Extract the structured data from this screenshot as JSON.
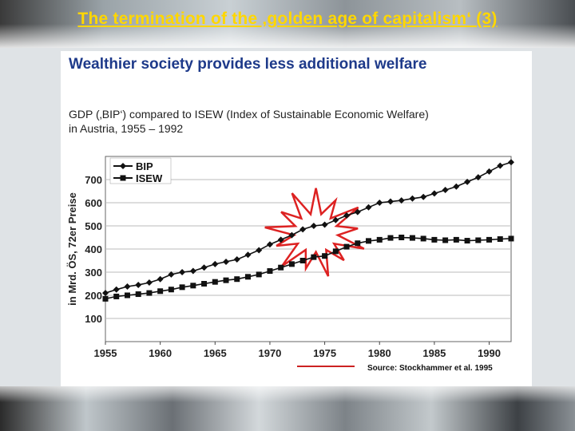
{
  "slide": {
    "title": "The termination of the ‚golden age of capitalism‘ (3)",
    "heading": "Wealthier society provides less additional welfare",
    "subtitle_line1": "GDP (‚BIP‘) compared to ISEW (Index of Sustainable Economic Welfare)",
    "subtitle_line2": "in Austria, 1955 – 1992",
    "source": "Source: Stockhammer et al. 1995",
    "accent_color": "#ffd700",
    "heading_color": "#1e3a8a",
    "source_underline_color": "#cc2222"
  },
  "chart_data": {
    "type": "line",
    "ylabel": "in Mrd. ÖS, 72er Preise",
    "xlabel": "",
    "xlim": [
      1955,
      1992
    ],
    "ylim": [
      0,
      800
    ],
    "x_ticks": [
      "1955",
      "1960",
      "1965",
      "1970",
      "1975",
      "1980",
      "1985",
      "1990"
    ],
    "y_ticks": [
      "100",
      "200",
      "300",
      "400",
      "500",
      "600",
      "700"
    ],
    "grid": true,
    "legend": {
      "position": "top-left",
      "entries": [
        "BIP",
        "ISEW"
      ]
    },
    "annotation": "starburst around 1973–1975",
    "x": [
      1955,
      1956,
      1957,
      1958,
      1959,
      1960,
      1961,
      1962,
      1963,
      1964,
      1965,
      1966,
      1967,
      1968,
      1969,
      1970,
      1971,
      1972,
      1973,
      1974,
      1975,
      1976,
      1977,
      1978,
      1979,
      1980,
      1981,
      1982,
      1983,
      1984,
      1985,
      1986,
      1987,
      1988,
      1989,
      1990,
      1991,
      1992
    ],
    "series": [
      {
        "name": "BIP",
        "marker": "diamond",
        "values": [
          210,
          225,
          238,
          245,
          255,
          270,
          290,
          300,
          305,
          320,
          335,
          345,
          355,
          375,
          395,
          420,
          440,
          460,
          485,
          500,
          505,
          525,
          545,
          560,
          580,
          600,
          605,
          610,
          618,
          625,
          640,
          655,
          670,
          690,
          710,
          735,
          760,
          775
        ]
      },
      {
        "name": "ISEW",
        "marker": "square",
        "values": [
          185,
          195,
          200,
          205,
          210,
          218,
          225,
          235,
          242,
          250,
          258,
          265,
          270,
          280,
          290,
          305,
          320,
          335,
          350,
          365,
          370,
          390,
          410,
          425,
          435,
          440,
          448,
          450,
          448,
          445,
          440,
          438,
          440,
          436,
          438,
          440,
          443,
          445
        ]
      }
    ]
  }
}
